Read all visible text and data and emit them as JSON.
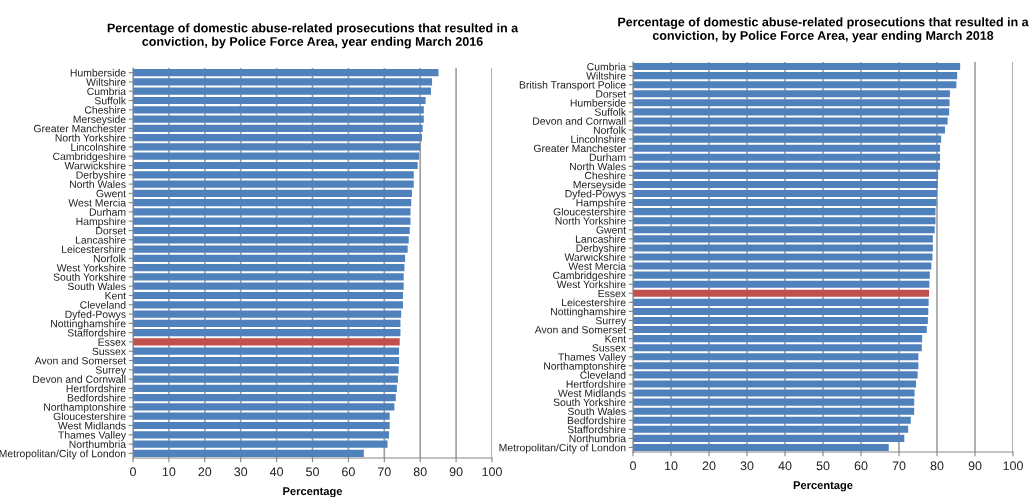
{
  "chart_data": [
    {
      "type": "bar",
      "orientation": "horizontal",
      "title": "Percentage of domestic abuse-related prosecutions that resulted in a\nconviction, by Police Force Area, year ending March 2016",
      "xlabel": "Percentage",
      "categories": [
        "Humberside",
        "Wiltshire",
        "Cumbria",
        "Suffolk",
        "Cheshire",
        "Merseyside",
        "Greater Manchester",
        "North Yorkshire",
        "Lincolnshire",
        "Cambridgeshire",
        "Warwickshire",
        "Derbyshire",
        "North Wales",
        "Gwent",
        "West Mercia",
        "Durham",
        "Hampshire",
        "Dorset",
        "Lancashire",
        "Leicestershire",
        "Norfolk",
        "West Yorkshire",
        "South Yorkshire",
        "South Wales",
        "Kent",
        "Cleveland",
        "Dyfed-Powys",
        "Nottinghamshire",
        "Staffordshire",
        "Essex",
        "Sussex",
        "Avon and Somerset",
        "Surrey",
        "Devon and Cornwall",
        "Hertfordshire",
        "Bedfordshire",
        "Northamptonshire",
        "Gloucestershire",
        "West Midlands",
        "Thames Valley",
        "Northumbria",
        "Metropolitan/City of London"
      ],
      "values": [
        85.1,
        83.3,
        83.0,
        81.5,
        81.0,
        81.0,
        80.7,
        80.5,
        80.0,
        79.7,
        79.3,
        78.2,
        78.2,
        77.7,
        77.5,
        77.3,
        77.3,
        77.1,
        76.8,
        76.5,
        75.8,
        75.6,
        75.4,
        75.4,
        75.2,
        75.2,
        74.7,
        74.5,
        74.5,
        74.3,
        74.1,
        74.1,
        74.0,
        73.8,
        73.5,
        73.2,
        72.8,
        71.5,
        71.5,
        71.3,
        70.9,
        64.3
      ],
      "colors": [
        "#4f81bd",
        "#4f81bd",
        "#4f81bd",
        "#4f81bd",
        "#4f81bd",
        "#4f81bd",
        "#4f81bd",
        "#4f81bd",
        "#4f81bd",
        "#4f81bd",
        "#4f81bd",
        "#4f81bd",
        "#4f81bd",
        "#4f81bd",
        "#4f81bd",
        "#4f81bd",
        "#4f81bd",
        "#4f81bd",
        "#4f81bd",
        "#4f81bd",
        "#4f81bd",
        "#4f81bd",
        "#4f81bd",
        "#4f81bd",
        "#4f81bd",
        "#4f81bd",
        "#4f81bd",
        "#4f81bd",
        "#4f81bd",
        "#c0504d",
        "#4f81bd",
        "#4f81bd",
        "#4f81bd",
        "#4f81bd",
        "#4f81bd",
        "#4f81bd",
        "#4f81bd",
        "#4f81bd",
        "#4f81bd",
        "#4f81bd",
        "#4f81bd",
        "#4f81bd"
      ],
      "xlim": [
        0,
        100
      ],
      "xticks": [
        0,
        10,
        20,
        30,
        40,
        50,
        60,
        70,
        80,
        90,
        100
      ],
      "grid": "x"
    },
    {
      "type": "bar",
      "orientation": "horizontal",
      "title": "Percentage of domestic abuse-related prosecutions that resulted in a\nconviction, by Police Force Area, year ending March 2018",
      "xlabel": "Percentage",
      "categories": [
        "Cumbria",
        "Wiltshire",
        "British Transport Police",
        "Dorset",
        "Humberside",
        "Suffolk",
        "Devon and Cornwall",
        "Norfolk",
        "Lincolnshire",
        "Greater Manchester",
        "Durham",
        "North Wales",
        "Cheshire",
        "Merseyside",
        "Dyfed-Powys",
        "Hampshire",
        "Gloucestershire",
        "North Yorkshire",
        "Gwent",
        "Lancashire",
        "Derbyshire",
        "Warwickshire",
        "West Mercia",
        "Cambridgeshire",
        "West Yorkshire",
        "Essex",
        "Leicestershire",
        "Nottinghamshire",
        "Surrey",
        "Avon and Somerset",
        "Kent",
        "Sussex",
        "Thames Valley",
        "Northamptonshire",
        "Cleveland",
        "Hertfordshire",
        "West Midlands",
        "South Yorkshire",
        "South Wales",
        "Bedfordshire",
        "Staffordshire",
        "Northumbria",
        "Metropolitan/City of London"
      ],
      "values": [
        86.1,
        85.3,
        85.1,
        83.4,
        83.3,
        83.2,
        82.8,
        82.1,
        81.1,
        80.8,
        80.8,
        80.8,
        80.3,
        80.2,
        80.0,
        79.9,
        79.6,
        79.6,
        79.4,
        78.9,
        78.9,
        78.8,
        78.5,
        78.1,
        78.0,
        77.9,
        77.8,
        77.7,
        77.6,
        77.3,
        76.1,
        76.0,
        75.1,
        75.1,
        74.9,
        74.5,
        74.1,
        74.0,
        74.0,
        73.1,
        72.4,
        71.4,
        67.3
      ],
      "colors": [
        "#4f81bd",
        "#4f81bd",
        "#4f81bd",
        "#4f81bd",
        "#4f81bd",
        "#4f81bd",
        "#4f81bd",
        "#4f81bd",
        "#4f81bd",
        "#4f81bd",
        "#4f81bd",
        "#4f81bd",
        "#4f81bd",
        "#4f81bd",
        "#4f81bd",
        "#4f81bd",
        "#4f81bd",
        "#4f81bd",
        "#4f81bd",
        "#4f81bd",
        "#4f81bd",
        "#4f81bd",
        "#4f81bd",
        "#4f81bd",
        "#4f81bd",
        "#c0504d",
        "#4f81bd",
        "#4f81bd",
        "#4f81bd",
        "#4f81bd",
        "#4f81bd",
        "#4f81bd",
        "#4f81bd",
        "#4f81bd",
        "#4f81bd",
        "#4f81bd",
        "#4f81bd",
        "#4f81bd",
        "#4f81bd",
        "#4f81bd",
        "#4f81bd",
        "#4f81bd",
        "#4f81bd"
      ],
      "xlim": [
        0,
        100
      ],
      "xticks": [
        0,
        10,
        20,
        30,
        40,
        50,
        60,
        70,
        80,
        90,
        100
      ],
      "grid": "x"
    }
  ]
}
